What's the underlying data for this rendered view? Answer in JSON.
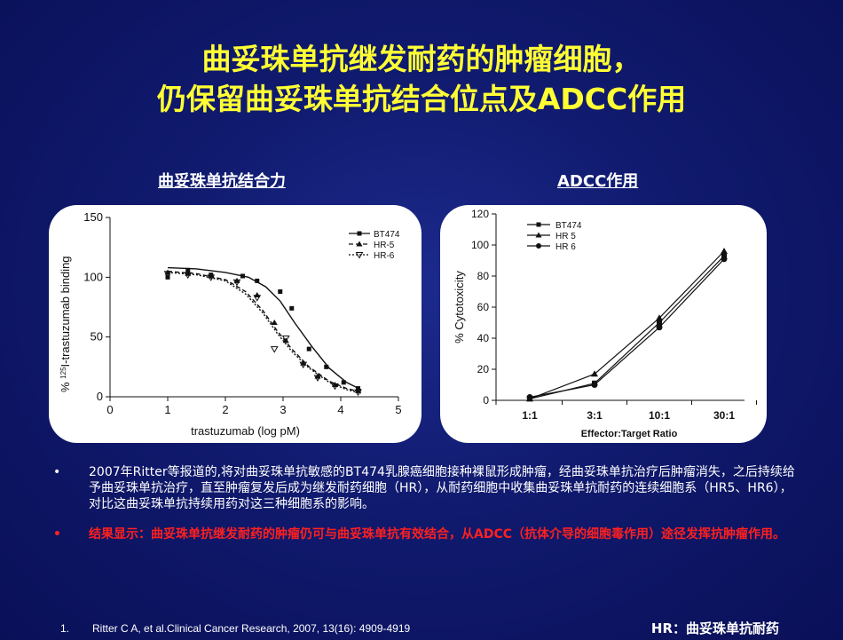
{
  "title": {
    "line1": "曲妥珠单抗继发耐药的肿瘤细胞，",
    "line2": "仍保留曲妥珠单抗结合位点及ADCC作用"
  },
  "left_heading": "曲妥珠单抗结合力",
  "right_heading": "ADCC作用",
  "chart_data": [
    {
      "type": "line",
      "xlabel": "trastuzumab (log pM)",
      "ylabel": "% 125I-trastuzumab binding",
      "ylabel_sup": "125",
      "ylabel_pre": "%",
      "ylabel_post": "I-trastuzumab binding",
      "xlim": [
        0,
        5
      ],
      "ylim": [
        0,
        150
      ],
      "x_ticks": [
        "0",
        "1",
        "2",
        "3",
        "4",
        "5"
      ],
      "y_ticks": [
        "0",
        "50",
        "100",
        "150"
      ],
      "legend_position": "top-right",
      "series": [
        {
          "name": "BT474",
          "marker": "square",
          "dash": "solid",
          "points": [
            [
              1.0,
              100
            ],
            [
              1.35,
              106
            ],
            [
              1.75,
              102
            ],
            [
              2.3,
              101
            ],
            [
              2.55,
              97
            ],
            [
              2.95,
              88
            ],
            [
              3.15,
              74
            ],
            [
              3.45,
              40
            ],
            [
              3.75,
              25
            ],
            [
              4.05,
              12
            ],
            [
              4.3,
              7
            ]
          ],
          "fit": [
            [
              1.0,
              108
            ],
            [
              1.5,
              107
            ],
            [
              2.0,
              104
            ],
            [
              2.4,
              100
            ],
            [
              2.7,
              92
            ],
            [
              2.95,
              80
            ],
            [
              3.2,
              62
            ],
            [
              3.5,
              42
            ],
            [
              3.8,
              24
            ],
            [
              4.1,
              12
            ],
            [
              4.35,
              6
            ]
          ]
        },
        {
          "name": "HR-5",
          "marker": "triangle",
          "dash": "dashed",
          "points": [
            [
              1.0,
              104
            ],
            [
              1.35,
              103
            ],
            [
              1.75,
              101
            ],
            [
              2.2,
              97
            ],
            [
              2.55,
              85
            ],
            [
              2.85,
              62
            ],
            [
              3.05,
              47
            ],
            [
              3.35,
              28
            ],
            [
              3.6,
              17
            ],
            [
              3.9,
              10
            ],
            [
              4.3,
              5
            ]
          ],
          "fit": [
            [
              1.0,
              105
            ],
            [
              1.5,
              103
            ],
            [
              2.0,
              98
            ],
            [
              2.35,
              88
            ],
            [
              2.65,
              72
            ],
            [
              2.9,
              55
            ],
            [
              3.15,
              40
            ],
            [
              3.45,
              25
            ],
            [
              3.8,
              13
            ],
            [
              4.1,
              7
            ],
            [
              4.35,
              4
            ]
          ]
        },
        {
          "name": "HR-6",
          "marker": "triangle-down",
          "dash": "dotted",
          "points": [
            [
              1.0,
              103
            ],
            [
              1.35,
              102
            ],
            [
              1.75,
              100
            ],
            [
              2.2,
              96
            ],
            [
              2.55,
              83
            ],
            [
              2.85,
              40
            ],
            [
              3.05,
              49
            ],
            [
              3.35,
              27
            ],
            [
              3.6,
              16
            ],
            [
              3.9,
              9
            ],
            [
              4.3,
              4
            ]
          ],
          "fit": [
            [
              1.0,
              104
            ],
            [
              1.5,
              102
            ],
            [
              2.0,
              97
            ],
            [
              2.35,
              86
            ],
            [
              2.65,
              70
            ],
            [
              2.9,
              53
            ],
            [
              3.15,
              38
            ],
            [
              3.45,
              24
            ],
            [
              3.8,
              12
            ],
            [
              4.1,
              6
            ],
            [
              4.35,
              3
            ]
          ]
        }
      ]
    },
    {
      "type": "line",
      "xlabel": "Effector:Target Ratio",
      "ylabel": "% Cytotoxicity",
      "categories": [
        "1:1",
        "3:1",
        "10:1",
        "30:1"
      ],
      "ylim": [
        0,
        120
      ],
      "y_ticks": [
        "0",
        "20",
        "40",
        "60",
        "80",
        "100",
        "120"
      ],
      "legend_position": "top-left",
      "series": [
        {
          "name": "BT474",
          "marker": "square",
          "values": [
            1,
            11,
            50,
            93
          ]
        },
        {
          "name": "HR 5",
          "marker": "triangle",
          "values": [
            1,
            17,
            53,
            96
          ]
        },
        {
          "name": "HR 6",
          "marker": "circle",
          "values": [
            2,
            10,
            47,
            91
          ]
        }
      ]
    }
  ],
  "bullets": [
    {
      "marker": "•",
      "color": "#ffffff",
      "text": "2007年Ritter等报道的,将对曲妥珠单抗敏感的BT474乳腺癌细胞接种裸鼠形成肿瘤，经曲妥珠单抗治疗后肿瘤消失，之后持续给予曲妥珠单抗治疗，直至肿瘤复发后成为继发耐药细胞（HR），从耐药细胞中收集曲妥珠单抗耐药的连续细胞系（HR5、HR6），对比这曲妥珠单抗持续用药对这三种细胞系的影响。"
    },
    {
      "marker": "•",
      "color": "#ff2020",
      "text": "结果显示：曲妥珠单抗继发耐药的肿瘤仍可与曲妥珠单抗有效结合，从ADCC（抗体介导的细胞毒作用）途径发挥抗肿瘤作用。"
    }
  ],
  "footnote": {
    "number": "1.",
    "text": "Ritter C A, et al.Clinical Cancer Research, 2007, 13(16): 4909-4919"
  },
  "hr_note": "HR：曲妥珠单抗耐药"
}
